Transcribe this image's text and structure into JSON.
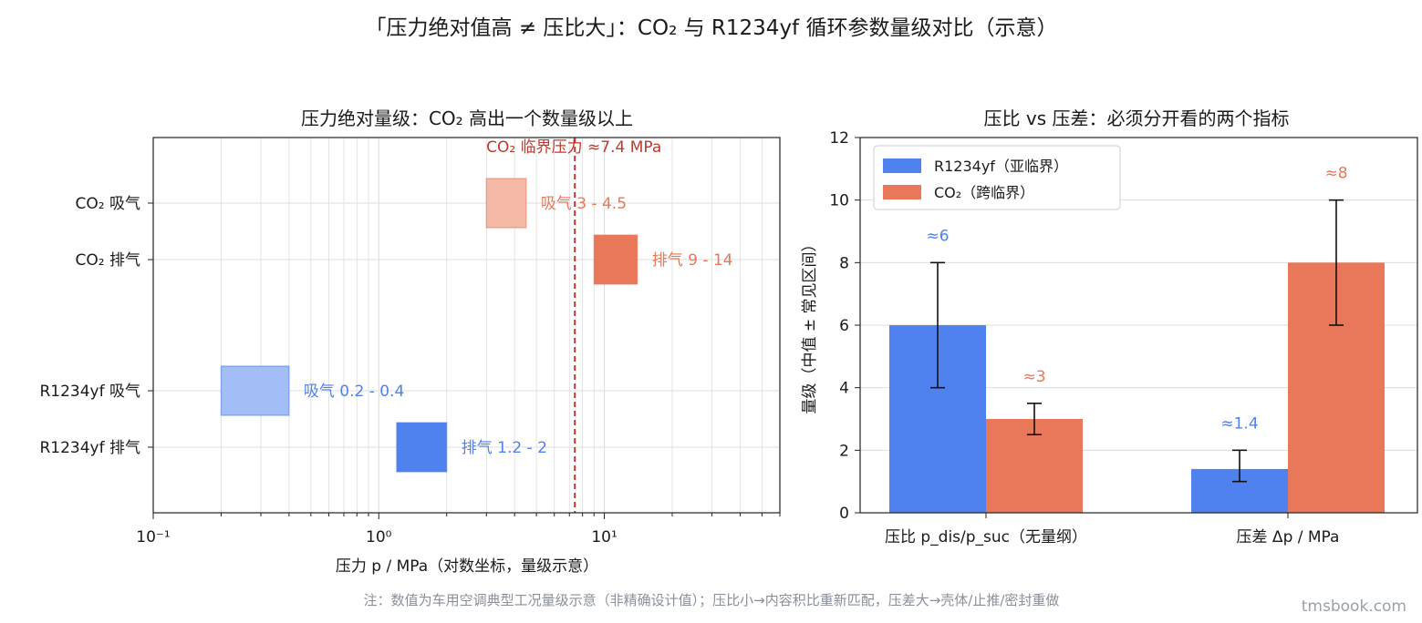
{
  "title": "「压力绝对值高 ≠ 压比大」：CO₂ 与 R1234yf 循环参数量级对比（示意）",
  "footnote": "注：数值为车用空调典型工况量级示意（非精确设计值）；压比小→内容积比重新匹配，压差大→壳体/止推/密封重做",
  "watermark": "tmsbook.com",
  "colors": {
    "r1234yf": "#4f81ef",
    "r1234yf_light": "#a3bdf6",
    "co2": "#e9785a",
    "co2_light": "#f4b8a6",
    "critical": "#c0392b",
    "grid": "#dddddd"
  },
  "chart_data": [
    {
      "type": "range-bar",
      "title": "压力绝对量级：CO₂ 高出一个数量级以上",
      "xlabel": "压力 p / MPa（对数坐标，量级示意）",
      "xscale": "log",
      "xlim": [
        0.1,
        60
      ],
      "xticks": [
        "10⁻¹",
        "10⁰",
        "10¹"
      ],
      "grid": true,
      "categories": [
        "CO₂ 吸气",
        "CO₂ 排气",
        "R1234yf 吸气",
        "R1234yf 排气"
      ],
      "ranges": [
        {
          "category": "CO₂ 吸气",
          "low": 3,
          "high": 4.5,
          "label": "吸气 3 - 4.5",
          "color": "co2_light"
        },
        {
          "category": "CO₂ 排气",
          "low": 9,
          "high": 14,
          "label": "排气 9 - 14",
          "color": "co2"
        },
        {
          "category": "R1234yf 吸气",
          "low": 0.2,
          "high": 0.4,
          "label": "吸气 0.2 - 0.4",
          "color": "r1234yf_light"
        },
        {
          "category": "R1234yf 排气",
          "low": 1.2,
          "high": 2,
          "label": "排气 1.2 - 2",
          "color": "r1234yf"
        }
      ],
      "reference_line": {
        "x": 7.4,
        "label": "CO₂ 临界压力 ≈7.4 MPa"
      }
    },
    {
      "type": "bar",
      "title": "压比 vs 压差：必须分开看的两个指标",
      "ylabel": "量级（中值 ± 常见区间）",
      "ylim": [
        0,
        12
      ],
      "yticks": [
        "0",
        "2",
        "4",
        "6",
        "8",
        "10",
        "12"
      ],
      "grid": true,
      "legend_position": "top-left",
      "categories": [
        "压比 p_dis/p_suc（无量纲）",
        "压差 Δp / MPa"
      ],
      "series": [
        {
          "name": "R1234yf（亚临界）",
          "color": "r1234yf",
          "values": [
            6,
            1.4
          ],
          "err_low": [
            4,
            1
          ],
          "err_high": [
            8,
            2
          ],
          "labels": [
            "≈6",
            "≈1.4"
          ]
        },
        {
          "name": "CO₂（跨临界）",
          "color": "co2",
          "values": [
            3,
            8
          ],
          "err_low": [
            2.5,
            6
          ],
          "err_high": [
            3.5,
            10
          ],
          "labels": [
            "≈3",
            "≈8"
          ]
        }
      ]
    }
  ]
}
